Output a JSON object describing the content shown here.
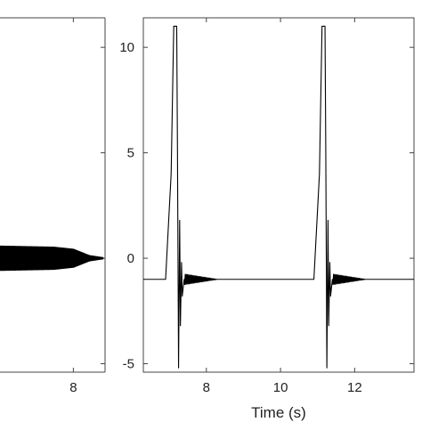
{
  "chart_data": [
    {
      "type": "line",
      "xlim": [
        4.3,
        9.6
      ],
      "ylim": [
        -5.4,
        11.4
      ],
      "x_ticks": [
        8
      ],
      "y_ticks": [],
      "xlabel": "",
      "ylabel": "",
      "grid": false,
      "line_color": "#000000",
      "series": [
        {
          "signal": "decaying-oscillation",
          "x": [
            4.3,
            7.0,
            8.0,
            8.8,
            9.5
          ],
          "envelope": [
            0.6,
            0.55,
            0.45,
            0.15,
            0.05
          ],
          "center": 0
        }
      ]
    },
    {
      "type": "line",
      "xlim": [
        6.3,
        13.6
      ],
      "ylim": [
        -5.4,
        11.4
      ],
      "x_ticks": [
        8,
        10,
        12
      ],
      "y_ticks": [
        -5,
        0,
        5,
        10
      ],
      "xlabel": "Time (s)",
      "ylabel": "",
      "grid": false,
      "line_color": "#000000",
      "series": [
        {
          "signal": "pulse-train",
          "baseline": -1,
          "pulses": [
            {
              "x": [
                6.9,
                7.05,
                7.12,
                7.2,
                7.22,
                7.25,
                7.28,
                7.3,
                7.33,
                7.35,
                7.4
              ],
              "y": [
                -1,
                4,
                11,
                11,
                5.3,
                -5.2,
                1.8,
                -3.2,
                -0.2,
                -1.8,
                -1
              ]
            },
            {
              "x": [
                10.9,
                11.05,
                11.12,
                11.2,
                11.22,
                11.25,
                11.28,
                11.3,
                11.33,
                11.35,
                11.4
              ],
              "y": [
                -1,
                4,
                11,
                11,
                5.3,
                -5.2,
                1.8,
                -3.2,
                -0.2,
                -1.8,
                -1
              ]
            }
          ],
          "ringdown_amplitude": 0.25
        }
      ]
    }
  ]
}
